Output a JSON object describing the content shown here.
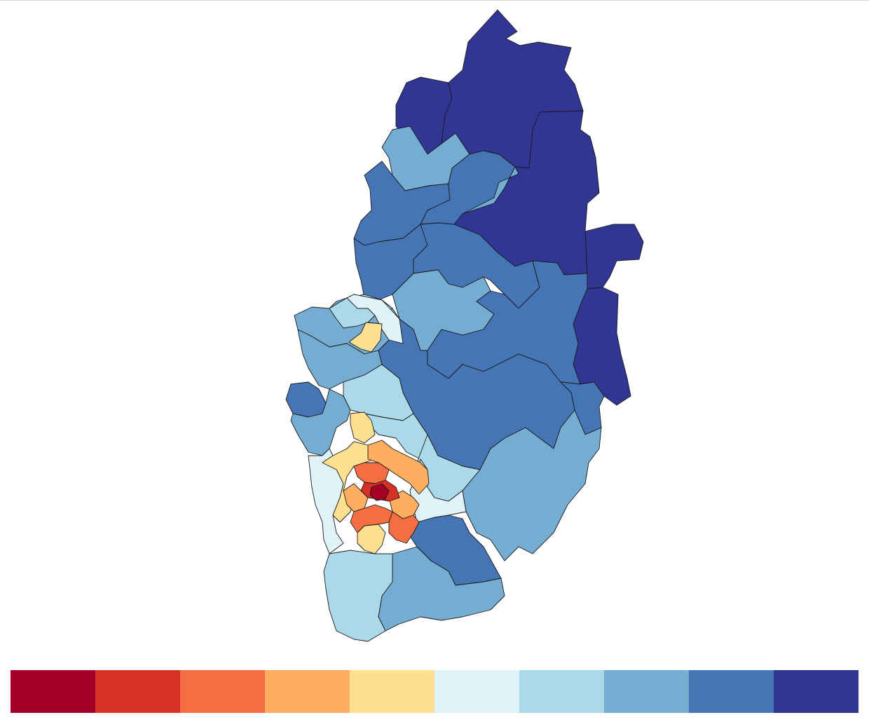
{
  "palette": [
    "#a50026",
    "#d73027",
    "#f46d43",
    "#fdae61",
    "#fee090",
    "#e0f3f8",
    "#abd9e9",
    "#74add1",
    "#4575b4",
    "#313695"
  ],
  "map_regions": [
    {
      "name": "region-north-west-upper",
      "class": 9
    },
    {
      "name": "region-north-centre",
      "class": 9
    },
    {
      "name": "region-north-east",
      "class": 9
    },
    {
      "name": "region-east-strip",
      "class": 9
    },
    {
      "name": "region-east-tab",
      "class": 9
    },
    {
      "name": "region-north-west-mid",
      "class": 7
    },
    {
      "name": "region-north-west-lower",
      "class": 8
    },
    {
      "name": "region-north-centre-mid",
      "class": 8
    },
    {
      "name": "region-north-inner",
      "class": 7
    },
    {
      "name": "region-west-mid",
      "class": 8
    },
    {
      "name": "region-centre-mid",
      "class": 8
    },
    {
      "name": "region-centre-pale",
      "class": 7
    },
    {
      "name": "region-east-large",
      "class": 8
    },
    {
      "name": "region-central-large",
      "class": 8
    },
    {
      "name": "region-east-lower",
      "class": 8
    },
    {
      "name": "region-west-pale-1",
      "class": 7
    },
    {
      "name": "region-west-pale-2",
      "class": 6
    },
    {
      "name": "region-west-palest",
      "class": 5
    },
    {
      "name": "region-west-yellow",
      "class": 4
    },
    {
      "name": "region-west-mid-2",
      "class": 7
    },
    {
      "name": "region-west-pale-3",
      "class": 6
    },
    {
      "name": "region-west-dark",
      "class": 8
    },
    {
      "name": "region-west-mid-3",
      "class": 7
    },
    {
      "name": "region-centre-pale-2",
      "class": 6
    },
    {
      "name": "region-centre-pale-3",
      "class": 6
    },
    {
      "name": "region-south-east",
      "class": 7
    },
    {
      "name": "region-south-east-dark",
      "class": 8
    },
    {
      "name": "region-south-east-lower",
      "class": 7
    },
    {
      "name": "region-south-west",
      "class": 6
    },
    {
      "name": "region-south-west-palest",
      "class": 5
    },
    {
      "name": "region-south-east-palest",
      "class": 5
    },
    {
      "name": "region-city-north-yellow",
      "class": 4
    },
    {
      "name": "region-city-outer-yellow",
      "class": 4
    },
    {
      "name": "region-city-south-yellow",
      "class": 4
    },
    {
      "name": "region-city-orange-1",
      "class": 3
    },
    {
      "name": "region-city-orange-2",
      "class": 3
    },
    {
      "name": "region-city-orange-3",
      "class": 3
    },
    {
      "name": "region-city-red-1",
      "class": 2
    },
    {
      "name": "region-city-red-2",
      "class": 2
    },
    {
      "name": "region-city-red-3",
      "class": 2
    },
    {
      "name": "region-city-red-4",
      "class": 1
    },
    {
      "name": "region-city-centre",
      "class": 0
    }
  ]
}
